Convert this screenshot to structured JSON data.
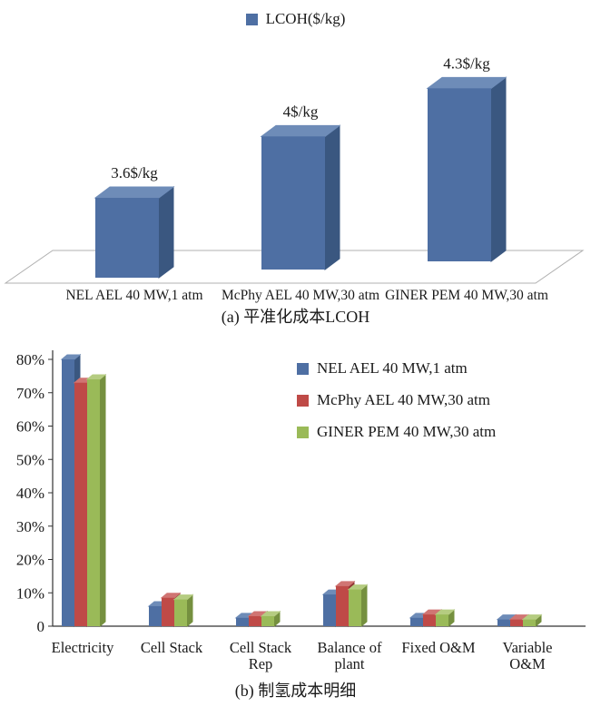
{
  "page": {
    "background": "#ffffff"
  },
  "chart_data": [
    {
      "id": "lcoh",
      "type": "bar",
      "projection": "3d",
      "legend_label": "LCOH($/kg)",
      "legend_position": "top-center",
      "caption": "(a) 平准化成本LCOH",
      "categories": [
        "NEL AEL 40 MW,1 atm",
        "McPhy AEL 40 MW,30 atm",
        "GINER PEM 40 MW,30 atm"
      ],
      "values": [
        3.6,
        4,
        4.3
      ],
      "value_labels": [
        "3.6$/kg",
        "4$/kg",
        "4.3$/kg"
      ],
      "unit": "$/kg",
      "ylim": [
        3,
        4.5
      ],
      "grid": false,
      "bar_colors": {
        "front": "#4e6fa3",
        "top": "#6e8cb8",
        "side": "#3a5780"
      }
    },
    {
      "id": "cost-breakdown",
      "type": "bar",
      "projection": "3d",
      "caption": "(b) 制氢成本明细",
      "categories": [
        "Electricity",
        "Cell Stack",
        "Cell Stack Rep",
        "Balance of plant",
        "Fixed O&M",
        "Variable O&M"
      ],
      "series": [
        {
          "name": "NEL AEL 40 MW,1 atm",
          "values": [
            80,
            6,
            2.5,
            9.5,
            2.5,
            2
          ],
          "color": {
            "front": "#4e6fa3",
            "top": "#6e8cb8",
            "side": "#3a5780"
          }
        },
        {
          "name": "McPhy AEL 40 MW,30 atm",
          "values": [
            73,
            8.5,
            3,
            12,
            3.5,
            2
          ],
          "color": {
            "front": "#bf4a47",
            "top": "#d07573",
            "side": "#8f3533"
          }
        },
        {
          "name": "GINER PEM 40 MW,30 atm",
          "values": [
            74,
            8,
            3,
            11,
            3.5,
            2
          ],
          "color": {
            "front": "#9aba58",
            "top": "#b5cc81",
            "side": "#75903f"
          }
        }
      ],
      "ylabel": "",
      "ylim": [
        0,
        80
      ],
      "y_ticks": [
        "0",
        "10%",
        "20%",
        "30%",
        "40%",
        "50%",
        "60%",
        "70%",
        "80%"
      ],
      "grid": false,
      "legend_position": "upper-right"
    }
  ]
}
